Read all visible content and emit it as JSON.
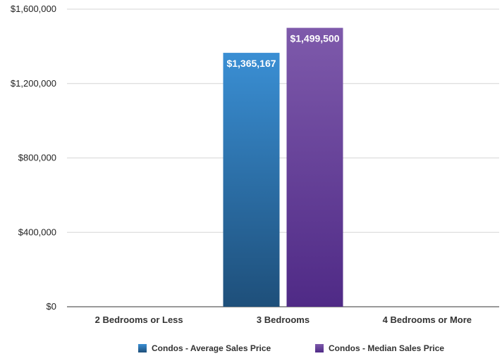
{
  "chart_data": {
    "type": "bar",
    "title": "",
    "xlabel": "",
    "ylabel": "",
    "categories": [
      "2 Bedrooms or Less",
      "3 Bedrooms",
      "4 Bedrooms or More"
    ],
    "series": [
      {
        "name": "Condos - Average Sales Price",
        "values": [
          0,
          1365167,
          0
        ],
        "data_labels": [
          "",
          "$1,365,167",
          ""
        ],
        "color_top": "#3a8fd4",
        "color_bottom": "#1e4f7a"
      },
      {
        "name": "Condos - Median Sales Price",
        "values": [
          0,
          1499500,
          0
        ],
        "data_labels": [
          "",
          "$1,499,500",
          ""
        ],
        "color_top": "#7e5aab",
        "color_bottom": "#4f2a86"
      }
    ],
    "ylim": [
      0,
      1600000
    ],
    "yticks": [
      0,
      400000,
      800000,
      1200000,
      1600000
    ],
    "ytick_labels": [
      "$0",
      "$400,000",
      "$800,000",
      "$1,200,000",
      "$1,600,000"
    ],
    "grid": true,
    "legend_position": "bottom"
  }
}
